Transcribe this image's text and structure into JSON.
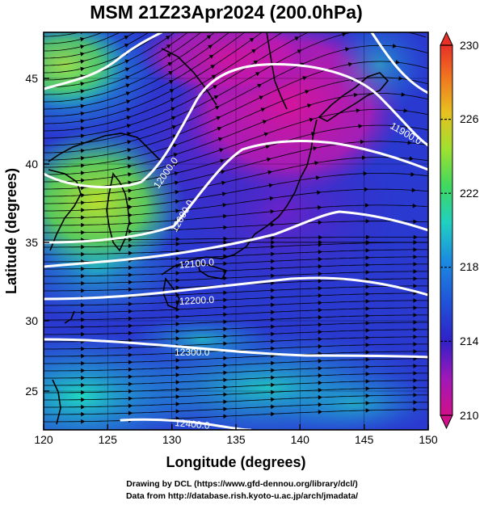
{
  "title": "MSM 21Z23Apr2024 (200.0hPa)",
  "axes": {
    "xlabel": "Longitude (degrees)",
    "ylabel": "Latitude  (degrees)",
    "xlim": [
      120,
      150
    ],
    "ylim": [
      22.5,
      47.8
    ],
    "xticks": [
      "120",
      "125",
      "130",
      "135",
      "140",
      "145",
      "150"
    ],
    "yticks": [
      "25",
      "30",
      "35",
      "40",
      "45"
    ]
  },
  "colorbar": {
    "min": 210,
    "max": 230,
    "labels": [
      "230",
      "226",
      "222",
      "218",
      "214",
      "210"
    ],
    "colors": [
      "#d0108a",
      "#8a18c8",
      "#2028c8",
      "#1c8ce0",
      "#20d8b8",
      "#48d848",
      "#c8e030",
      "#f0b020",
      "#f05820",
      "#e83028"
    ]
  },
  "contours": [
    {
      "label": "11900.0"
    },
    {
      "label": "12000.0"
    },
    {
      "label": "12100.0"
    },
    {
      "label": "12200.0"
    },
    {
      "label": "12300.0"
    },
    {
      "label": "12400.0"
    }
  ],
  "footer": {
    "line1": "Drawing by DCL (https://www.gfd-dennou.org/library/dcl/)",
    "line2": "Data from http://database.rish.kyoto-u.ac.jp/arch/jmadata/"
  }
}
